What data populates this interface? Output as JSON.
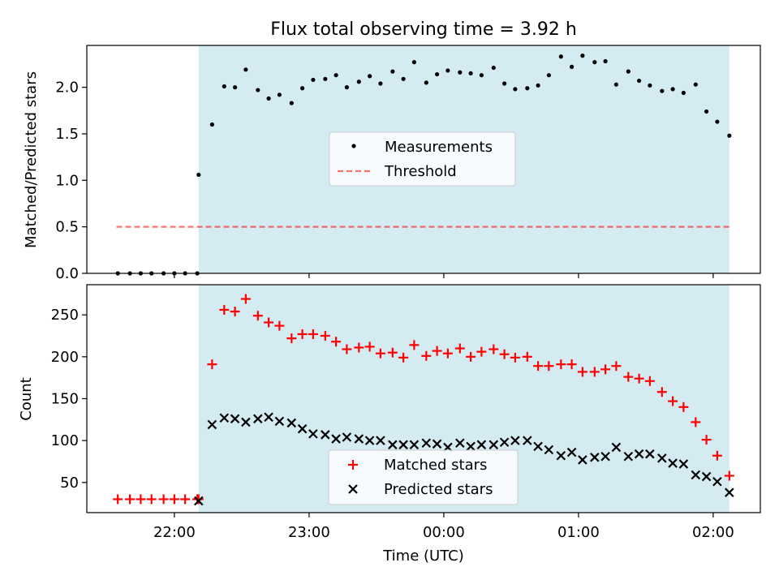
{
  "chart_data": [
    {
      "type": "scatter",
      "title": "Flux total observing time = 3.92 h",
      "ylabel": "Matched/Predicted stars",
      "xlabel": "",
      "xlim_hours": [
        21.35,
        26.35
      ],
      "ylim": [
        0,
        2.45
      ],
      "yticks": [
        0.0,
        0.5,
        1.0,
        1.5,
        2.0
      ],
      "ytick_labels": [
        "0.0",
        "0.5",
        "1.0",
        "1.5",
        "2.0"
      ],
      "shade_range_hours": [
        22.18,
        26.12
      ],
      "shade_color": "#add8e6",
      "legend_position": "center",
      "threshold": {
        "name": "Threshold",
        "y": 0.5,
        "x_range_hours": [
          21.57,
          26.12
        ],
        "color": "#ff0000"
      },
      "series": [
        {
          "name": "Measurements",
          "color": "#000000",
          "x_hours": [
            21.58,
            21.67,
            21.75,
            21.83,
            21.92,
            22.0,
            22.08,
            22.17,
            22.18,
            22.28,
            22.37,
            22.45,
            22.53,
            22.62,
            22.7,
            22.78,
            22.87,
            22.95,
            23.03,
            23.12,
            23.2,
            23.28,
            23.37,
            23.45,
            23.53,
            23.62,
            23.7,
            23.78,
            23.87,
            23.95,
            24.03,
            24.12,
            24.2,
            24.28,
            24.37,
            24.45,
            24.53,
            24.62,
            24.7,
            24.78,
            24.87,
            24.95,
            25.03,
            25.12,
            25.2,
            25.28,
            25.37,
            25.45,
            25.53,
            25.62,
            25.7,
            25.78,
            25.87,
            25.95,
            26.03,
            26.12
          ],
          "y": [
            0,
            0,
            0,
            0,
            0,
            0,
            0,
            0,
            1.06,
            1.6,
            2.01,
            2.0,
            2.19,
            1.97,
            1.88,
            1.92,
            1.83,
            1.99,
            2.08,
            2.09,
            2.13,
            2.0,
            2.06,
            2.12,
            2.04,
            2.17,
            2.09,
            2.27,
            2.05,
            2.14,
            2.18,
            2.16,
            2.15,
            2.13,
            2.21,
            2.04,
            1.98,
            1.99,
            2.02,
            2.13,
            2.33,
            2.22,
            2.34,
            2.27,
            2.28,
            2.03,
            2.17,
            2.07,
            2.02,
            1.96,
            1.98,
            1.94,
            2.03,
            1.74,
            1.63,
            1.48
          ]
        }
      ]
    },
    {
      "type": "scatter",
      "title": "",
      "ylabel": "Count",
      "xlabel": "Time (UTC)",
      "xlim_hours": [
        21.35,
        26.35
      ],
      "ylim": [
        14,
        286
      ],
      "yticks": [
        50,
        100,
        150,
        200,
        250
      ],
      "ytick_labels": [
        "50",
        "100",
        "150",
        "200",
        "250"
      ],
      "xticks_hours": [
        22,
        23,
        24,
        25,
        26
      ],
      "xtick_labels": [
        "22:00",
        "23:00",
        "00:00",
        "01:00",
        "02:00"
      ],
      "shade_range_hours": [
        22.18,
        26.12
      ],
      "shade_color": "#add8e6",
      "legend_position": "lower center",
      "series": [
        {
          "name": "Matched stars",
          "marker": "+",
          "color": "#ff0000",
          "x_hours": [
            21.58,
            21.67,
            21.75,
            21.83,
            21.92,
            22.0,
            22.08,
            22.17,
            22.18,
            22.28,
            22.37,
            22.45,
            22.53,
            22.62,
            22.7,
            22.78,
            22.87,
            22.95,
            23.03,
            23.12,
            23.2,
            23.28,
            23.37,
            23.45,
            23.53,
            23.62,
            23.7,
            23.78,
            23.87,
            23.95,
            24.03,
            24.12,
            24.2,
            24.28,
            24.37,
            24.45,
            24.53,
            24.62,
            24.7,
            24.78,
            24.87,
            24.95,
            25.03,
            25.12,
            25.2,
            25.28,
            25.37,
            25.45,
            25.53,
            25.62,
            25.7,
            25.78,
            25.87,
            25.95,
            26.03,
            26.12
          ],
          "y": [
            30,
            30,
            30,
            30,
            30,
            30,
            30,
            30,
            30,
            191,
            256,
            254,
            269,
            249,
            241,
            237,
            222,
            227,
            227,
            225,
            218,
            209,
            211,
            212,
            204,
            205,
            199,
            214,
            201,
            207,
            204,
            210,
            200,
            206,
            209,
            203,
            199,
            200,
            189,
            189,
            191,
            191,
            182,
            182,
            185,
            189,
            176,
            174,
            171,
            158,
            147,
            140,
            122,
            101,
            82,
            58
          ]
        },
        {
          "name": "Predicted stars",
          "marker": "x",
          "color": "#000000",
          "x_hours": [
            22.18,
            22.28,
            22.37,
            22.45,
            22.53,
            22.62,
            22.7,
            22.78,
            22.87,
            22.95,
            23.03,
            23.12,
            23.2,
            23.28,
            23.37,
            23.45,
            23.53,
            23.62,
            23.7,
            23.78,
            23.87,
            23.95,
            24.03,
            24.12,
            24.2,
            24.28,
            24.37,
            24.45,
            24.53,
            24.62,
            24.7,
            24.78,
            24.87,
            24.95,
            25.03,
            25.12,
            25.2,
            25.28,
            25.37,
            25.45,
            25.53,
            25.62,
            25.7,
            25.78,
            25.87,
            25.95,
            26.03,
            26.12
          ],
          "y": [
            28,
            119,
            127,
            126,
            122,
            126,
            128,
            123,
            121,
            114,
            108,
            107,
            102,
            104,
            102,
            100,
            100,
            95,
            95,
            95,
            97,
            96,
            92,
            97,
            93,
            95,
            95,
            98,
            100,
            100,
            93,
            89,
            82,
            86,
            77,
            80,
            81,
            92,
            81,
            84,
            84,
            79,
            73,
            72,
            59,
            57,
            51,
            38
          ]
        }
      ]
    }
  ]
}
